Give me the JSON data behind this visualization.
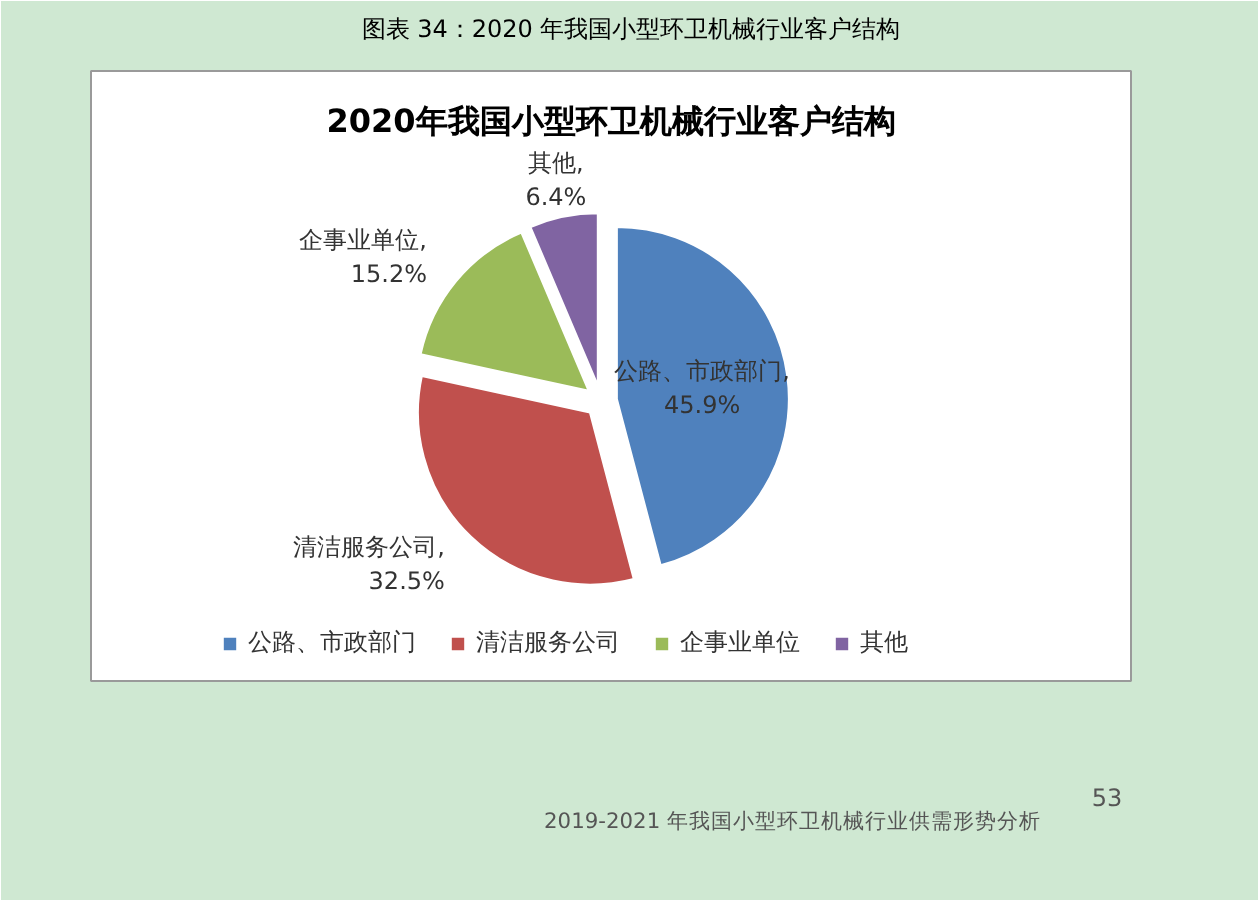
{
  "chart_data": {
    "type": "pie",
    "title": "2020年我国小型环卫机械行业客户结构",
    "categories": [
      "公路、市政部门",
      "清洁服务公司",
      "企事业单位",
      "其他"
    ],
    "values": [
      45.9,
      32.5,
      15.2,
      6.4
    ],
    "colors": [
      "#4f81bd",
      "#c0504d",
      "#9bbb59",
      "#8064a2"
    ],
    "value_labels": [
      "公路、市政部门, 45.9%",
      "清洁服务公司, 32.5%",
      "企事业单位, 15.2%",
      "其他, 6.4%"
    ],
    "legend": "bottom",
    "annotations": [
      "图表 34：2020 年我国小型环卫机械行业客户结构",
      "2019-2021 年我国小型环卫机械行业供需形势分析",
      "53"
    ]
  }
}
